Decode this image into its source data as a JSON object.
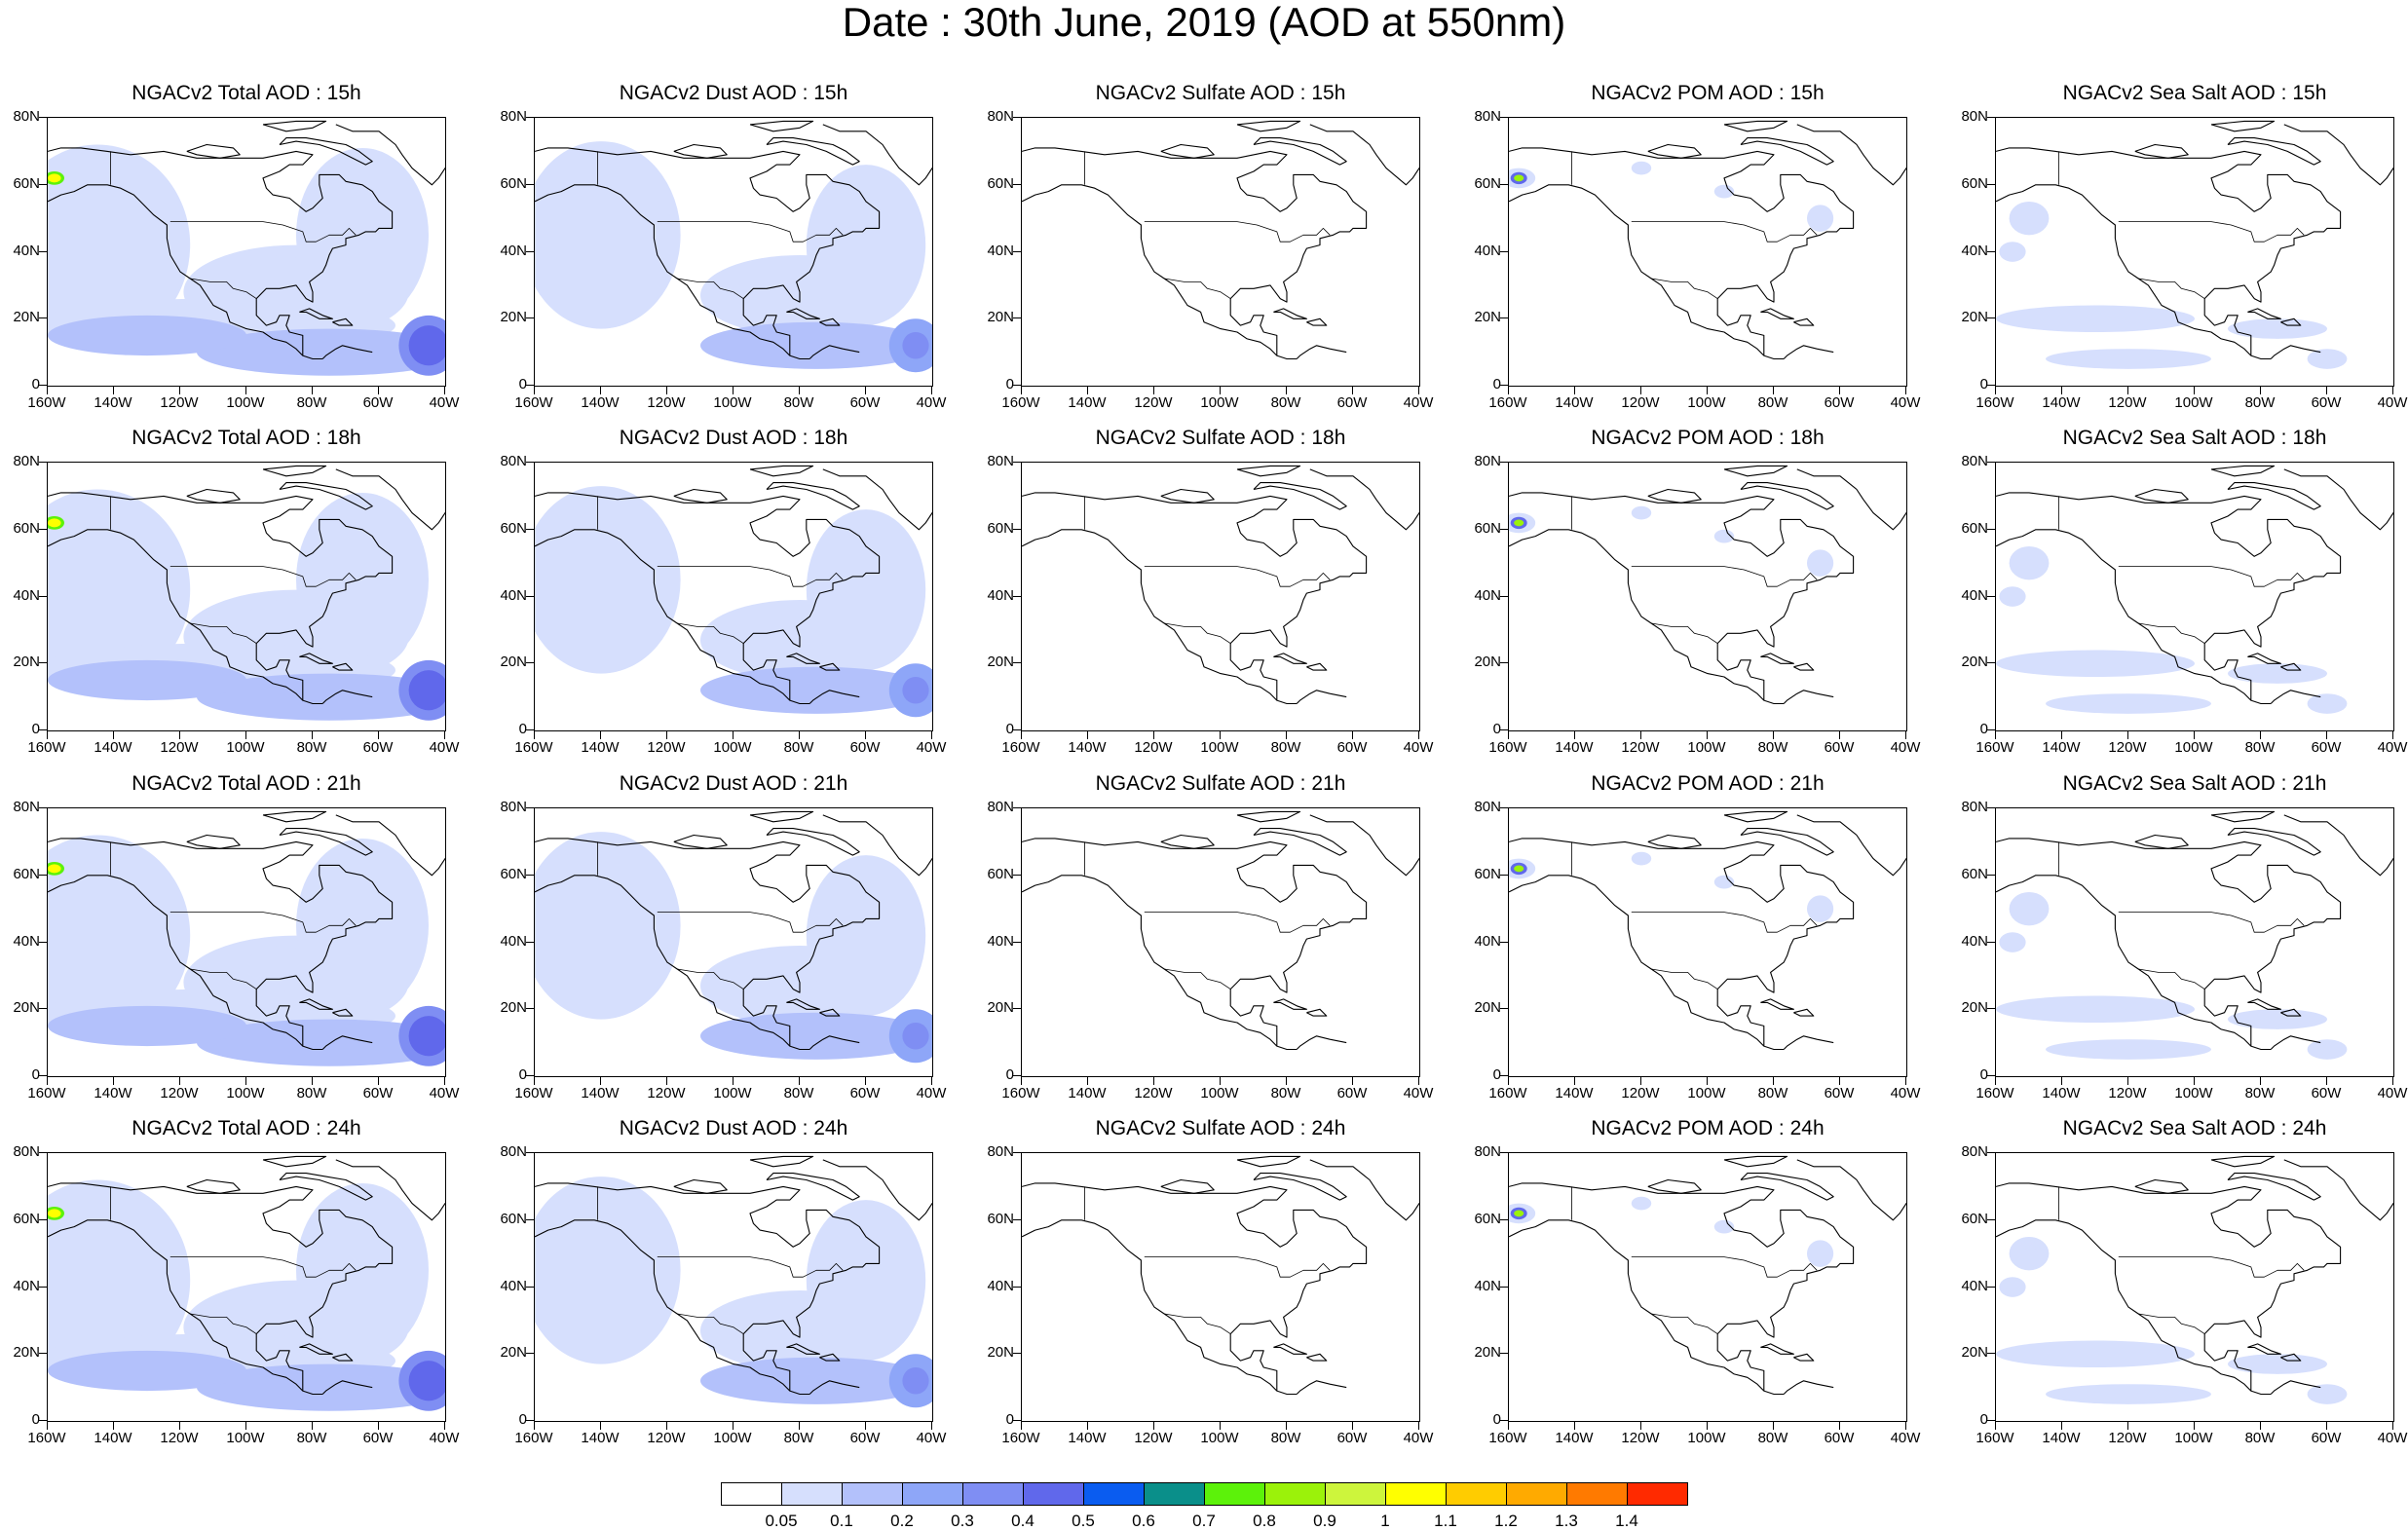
{
  "title": "Date : 30th June, 2019 (AOD at 550nm)",
  "panels": [
    {
      "title": "NGACv2 Total AOD : 15h",
      "field": "total"
    },
    {
      "title": "NGACv2 Dust AOD : 15h",
      "field": "dust"
    },
    {
      "title": "NGACv2 Sulfate AOD : 15h",
      "field": "sulfate"
    },
    {
      "title": "NGACv2 POM AOD : 15h",
      "field": "pom"
    },
    {
      "title": "NGACv2 Sea Salt AOD : 15h",
      "field": "seasalt"
    },
    {
      "title": "NGACv2 Total AOD : 18h",
      "field": "total"
    },
    {
      "title": "NGACv2 Dust AOD : 18h",
      "field": "dust"
    },
    {
      "title": "NGACv2 Sulfate AOD : 18h",
      "field": "sulfate"
    },
    {
      "title": "NGACv2 POM AOD : 18h",
      "field": "pom"
    },
    {
      "title": "NGACv2 Sea Salt AOD : 18h",
      "field": "seasalt"
    },
    {
      "title": "NGACv2 Total AOD : 21h",
      "field": "total"
    },
    {
      "title": "NGACv2 Dust AOD : 21h",
      "field": "dust"
    },
    {
      "title": "NGACv2 Sulfate AOD : 21h",
      "field": "sulfate"
    },
    {
      "title": "NGACv2 POM AOD : 21h",
      "field": "pom"
    },
    {
      "title": "NGACv2 Sea Salt AOD : 21h",
      "field": "seasalt"
    },
    {
      "title": "NGACv2 Total AOD : 24h",
      "field": "total"
    },
    {
      "title": "NGACv2 Dust AOD : 24h",
      "field": "dust"
    },
    {
      "title": "NGACv2 Sulfate AOD : 24h",
      "field": "sulfate"
    },
    {
      "title": "NGACv2 POM AOD : 24h",
      "field": "pom"
    },
    {
      "title": "NGACv2 Sea Salt  AOD : 24h",
      "field": "seasalt"
    }
  ],
  "axes": {
    "lat_ticks": [
      "80N",
      "60N",
      "40N",
      "20N",
      "0"
    ],
    "lon_ticks": [
      "160W",
      "140W",
      "120W",
      "100W",
      "80W",
      "60W",
      "40W"
    ]
  },
  "colorbar": {
    "colors": [
      "#ffffff",
      "#d6dffd",
      "#b3c1fb",
      "#8ea6f8",
      "#7f8ef3",
      "#6068eb",
      "#0a5cf0",
      "#0a8f8a",
      "#5cf20a",
      "#9bf20a",
      "#cdf53c",
      "#ffff00",
      "#ffcc00",
      "#ffaa00",
      "#ff7a00",
      "#ff2a00"
    ],
    "labels": [
      "0.05",
      "0.1",
      "0.2",
      "0.3",
      "0.4",
      "0.5",
      "0.6",
      "0.7",
      "0.8",
      "0.9",
      "1",
      "1.1",
      "1.2",
      "1.3",
      "1.4"
    ]
  }
}
